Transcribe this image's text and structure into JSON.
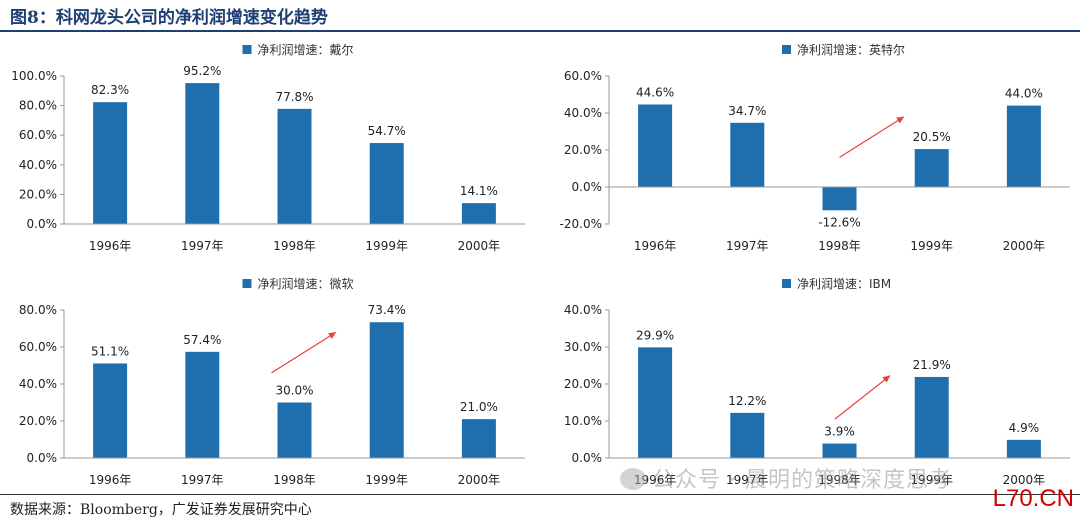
{
  "figure_title": "图8：科网龙头公司的净利润增速变化趋势",
  "source": "数据来源：Bloomberg，广发证券发展研究中心",
  "watermark": "公众号 · 晨明的策略深度思考",
  "site_mark": "L70.CN",
  "colors": {
    "bar": "#1f6fae",
    "arrow": "#e8413c",
    "axis": "#999999",
    "title": "#1f3f73"
  },
  "chart_data": [
    {
      "type": "bar",
      "legend": "净利润增速：戴尔",
      "categories": [
        "1996年",
        "1997年",
        "1998年",
        "1999年",
        "2000年"
      ],
      "values": [
        82.3,
        95.2,
        77.8,
        54.7,
        14.1
      ],
      "labels": [
        "82.3%",
        "95.2%",
        "77.8%",
        "54.7%",
        "14.1%"
      ],
      "yticks": [
        "0.0%",
        "20.0%",
        "40.0%",
        "60.0%",
        "80.0%",
        "100.0%"
      ],
      "ytick_values": [
        0,
        20,
        40,
        60,
        80,
        100
      ],
      "ylim": [
        0,
        100
      ],
      "arrow": null
    },
    {
      "type": "bar",
      "legend": "净利润增速：英特尔",
      "categories": [
        "1996年",
        "1997年",
        "1998年",
        "1999年",
        "2000年"
      ],
      "values": [
        44.6,
        34.7,
        -12.6,
        20.5,
        44.0
      ],
      "labels": [
        "44.6%",
        "34.7%",
        "-12.6%",
        "20.5%",
        "44.0%"
      ],
      "yticks": [
        "-20.0%",
        "0.0%",
        "20.0%",
        "40.0%",
        "60.0%"
      ],
      "ytick_values": [
        -20,
        0,
        20,
        40,
        60
      ],
      "ylim": [
        -20,
        60
      ],
      "arrow": {
        "from": [
          2.5,
          16
        ],
        "to": [
          3.2,
          38
        ]
      }
    },
    {
      "type": "bar",
      "legend": "净利润增速：微软",
      "categories": [
        "1996年",
        "1997年",
        "1998年",
        "1999年",
        "2000年"
      ],
      "values": [
        51.1,
        57.4,
        30.0,
        73.4,
        21.0
      ],
      "labels": [
        "51.1%",
        "57.4%",
        "30.0%",
        "73.4%",
        "21.0%"
      ],
      "yticks": [
        "0.0%",
        "20.0%",
        "40.0%",
        "60.0%",
        "80.0%"
      ],
      "ytick_values": [
        0,
        20,
        40,
        60,
        80
      ],
      "ylim": [
        0,
        80
      ],
      "arrow": {
        "from": [
          2.25,
          46
        ],
        "to": [
          2.95,
          68
        ]
      }
    },
    {
      "type": "bar",
      "legend": "净利润增速：IBM",
      "categories": [
        "1996年",
        "1997年",
        "1998年",
        "1999年",
        "2000年"
      ],
      "values": [
        29.9,
        12.2,
        3.9,
        21.9,
        4.9
      ],
      "labels": [
        "29.9%",
        "12.2%",
        "3.9%",
        "21.9%",
        "4.9%"
      ],
      "yticks": [
        "0.0%",
        "10.0%",
        "20.0%",
        "30.0%",
        "40.0%"
      ],
      "ytick_values": [
        0,
        10,
        20,
        30,
        40
      ],
      "ylim": [
        0,
        40
      ],
      "arrow": {
        "from": [
          2.45,
          10.5
        ],
        "to": [
          3.05,
          22.3
        ]
      }
    }
  ]
}
